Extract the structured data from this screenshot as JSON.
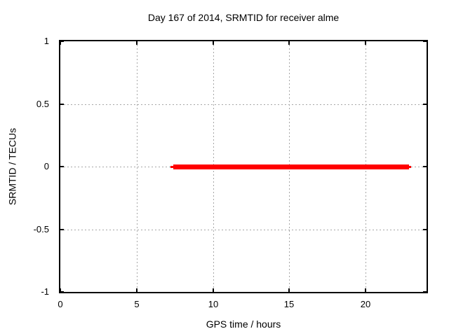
{
  "window": {
    "background_color": "#ffffff",
    "kind": "gnuplot-style chart image"
  },
  "chart_data": {
    "type": "line",
    "title": "Day 167 of 2014, SRMTID for receiver alme",
    "xlabel": "GPS time / hours",
    "ylabel": "SRMTID / TECUs",
    "xlim": [
      0,
      24
    ],
    "ylim": [
      -1,
      1
    ],
    "grid": true,
    "grid_style": "dotted",
    "legend": "none",
    "xticks": [
      {
        "value": 0,
        "label": "0"
      },
      {
        "value": 5,
        "label": "5"
      },
      {
        "value": 10,
        "label": "10"
      },
      {
        "value": 15,
        "label": "15"
      },
      {
        "value": 20,
        "label": "20"
      }
    ],
    "yticks": [
      {
        "value": -1,
        "label": "-1"
      },
      {
        "value": -0.5,
        "label": "-0.5"
      },
      {
        "value": 0,
        "label": "0"
      },
      {
        "value": 0.5,
        "label": "0.5"
      },
      {
        "value": 1,
        "label": "1"
      }
    ],
    "series": [
      {
        "name": "SRMTID",
        "color": "#ff0000",
        "linewidth": 7,
        "description": "Flat horizontal line at SRMTID = 0 TECUs spanning roughly 7.4 to 22.85 GPS hours",
        "points": [
          [
            7.4,
            0
          ],
          [
            22.85,
            0
          ]
        ]
      }
    ]
  },
  "colors": {
    "background": "#ffffff",
    "border": "#000000",
    "grid": "#a6a6a6",
    "text": "#000000",
    "series_red": "#ff0000"
  }
}
